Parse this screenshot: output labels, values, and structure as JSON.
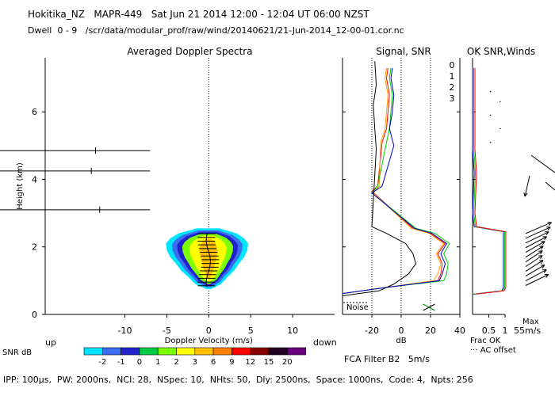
{
  "header": {
    "line1": "Hokitika_NZ   MAPR-449   Sat Jun 21 2014 12:00 - 12:04 UT 06:00 NZST",
    "line2": "Dwell  0 - 9   /scr/data/modular_prof/raw/wind/20140621/21-Jun-2014_12-00-01.cor.nc"
  },
  "footer": {
    "params": "IPP: 100μs,  PW: 2000ns,  NCI: 28,  NSpec: 10,  NHts: 50,  Dly: 2500ns,  Space: 1000ns,  Code: 4,  Npts: 256",
    "fca": "FCA Filter B2   5m/s"
  },
  "colors": {
    "snr_scale": [
      "#00e5ff",
      "#3a6df0",
      "#2222cc",
      "#00cc44",
      "#7cff00",
      "#ffff00",
      "#ffc000",
      "#ff8000",
      "#ff0000",
      "#880000",
      "#220022",
      "#6a0080"
    ],
    "channel0": "#ff0000",
    "channel1": "#ffa000",
    "channel2": "#00cc00",
    "channel3": "#0000cc"
  },
  "chart_data": [
    {
      "type": "heatmap",
      "title": "Averaged Doppler Spectra",
      "xlabel": "Doppler Velocity (m/s)",
      "ylabel": "Height (km)",
      "x_ticks": [
        "-10",
        "-5",
        "0",
        "5",
        "10"
      ],
      "y_ticks": [
        "0",
        "2",
        "4",
        "6"
      ],
      "xlim": [
        -19.5,
        15
      ],
      "ylim": [
        0,
        7.6
      ],
      "left_note": "up",
      "right_note": "down",
      "colorbar": {
        "label": "SNR dB",
        "ticks": [
          "-2",
          "-1",
          "0",
          "1",
          "2",
          "3",
          "6",
          "9",
          "12",
          "15",
          "20"
        ]
      },
      "echo_region": {
        "height_range": [
          0.75,
          2.55
        ],
        "half_width_mps": [
          [
            0.75,
            0.3
          ],
          [
            0.9,
            1.6
          ],
          [
            1.1,
            2.4
          ],
          [
            1.3,
            3.3
          ],
          [
            1.5,
            3.9
          ],
          [
            1.7,
            4.6
          ],
          [
            1.9,
            5.0
          ],
          [
            2.1,
            5.1
          ],
          [
            2.25,
            4.6
          ],
          [
            2.4,
            3.6
          ],
          [
            2.55,
            1.4
          ]
        ]
      },
      "noise_heights": [
        {
          "height": 4.85,
          "mark": -13.5
        },
        {
          "height": 4.25,
          "mark": -14.0
        },
        {
          "height": 3.1,
          "mark": -13.0
        }
      ]
    },
    {
      "type": "line",
      "title": "Signal, SNR",
      "xlabel": "dB",
      "x_ticks": [
        "-20",
        "0",
        "20",
        "40"
      ],
      "xlim": [
        -40,
        40
      ],
      "ylim": [
        0,
        7.6
      ],
      "legend": [
        "0",
        "1",
        "2",
        "3"
      ],
      "annotation": "Noise",
      "series": [
        {
          "name": "0",
          "profile": [
            [
              0.62,
              -40
            ],
            [
              0.8,
              -10
            ],
            [
              1.0,
              25
            ],
            [
              1.2,
              27
            ],
            [
              1.5,
              28
            ],
            [
              1.8,
              25
            ],
            [
              2.1,
              30
            ],
            [
              2.4,
              20
            ],
            [
              2.55,
              8
            ],
            [
              3.65,
              -20
            ],
            [
              3.8,
              -16
            ],
            [
              5.1,
              -13
            ],
            [
              5.5,
              -10
            ],
            [
              6.0,
              -9
            ],
            [
              6.5,
              -8
            ],
            [
              7.0,
              -10
            ],
            [
              7.3,
              -9
            ]
          ]
        },
        {
          "name": "1",
          "profile": [
            [
              0.62,
              -40
            ],
            [
              0.8,
              -10
            ],
            [
              1.0,
              22
            ],
            [
              1.2,
              25
            ],
            [
              1.5,
              27
            ],
            [
              1.8,
              24
            ],
            [
              2.1,
              29
            ],
            [
              2.4,
              19
            ],
            [
              2.55,
              7
            ],
            [
              3.6,
              -19
            ],
            [
              3.8,
              -15
            ],
            [
              5.1,
              -14
            ],
            [
              5.5,
              -11
            ],
            [
              6.0,
              -10
            ],
            [
              6.5,
              -9
            ],
            [
              7.0,
              -11
            ],
            [
              7.3,
              -10
            ]
          ]
        },
        {
          "name": "2",
          "profile": [
            [
              0.62,
              -40
            ],
            [
              0.8,
              -10
            ],
            [
              1.0,
              29
            ],
            [
              1.2,
              31
            ],
            [
              1.5,
              32
            ],
            [
              1.8,
              29
            ],
            [
              2.1,
              33
            ],
            [
              2.4,
              23
            ],
            [
              2.55,
              10
            ],
            [
              3.6,
              -20
            ],
            [
              3.8,
              -16
            ],
            [
              5.1,
              -10
            ],
            [
              5.5,
              -8
            ],
            [
              6.0,
              -7
            ],
            [
              6.5,
              -6
            ],
            [
              7.0,
              -8
            ],
            [
              7.3,
              -7
            ]
          ]
        },
        {
          "name": "3",
          "profile": [
            [
              0.62,
              -40
            ],
            [
              0.8,
              -10
            ],
            [
              1.0,
              26
            ],
            [
              1.2,
              28
            ],
            [
              1.5,
              30
            ],
            [
              1.8,
              27
            ],
            [
              2.1,
              31
            ],
            [
              2.4,
              21
            ],
            [
              2.55,
              9
            ],
            [
              3.6,
              -20
            ],
            [
              3.8,
              -13
            ],
            [
              5.0,
              -5
            ],
            [
              5.5,
              -8
            ],
            [
              6.0,
              -6
            ],
            [
              6.5,
              -5
            ],
            [
              7.0,
              -7
            ],
            [
              7.3,
              -6
            ]
          ]
        },
        {
          "name": "signal",
          "profile": [
            [
              0.55,
              -40
            ],
            [
              0.7,
              -15
            ],
            [
              0.9,
              -5
            ],
            [
              1.2,
              5
            ],
            [
              1.5,
              10
            ],
            [
              1.8,
              8
            ],
            [
              2.1,
              3
            ],
            [
              2.4,
              -10
            ],
            [
              2.6,
              -20
            ],
            [
              4.9,
              -17
            ],
            [
              5.5,
              -18
            ],
            [
              6.2,
              -19
            ],
            [
              6.8,
              -17
            ],
            [
              7.5,
              -18
            ]
          ]
        }
      ]
    },
    {
      "type": "line",
      "title": "OK SNR,Winds",
      "x_ticks": [
        "0.5",
        "1"
      ],
      "xlim": [
        0,
        1
      ],
      "ylim": [
        0,
        7.6
      ],
      "bottom_labels": [
        "Frac OK",
        "··· AC offset"
      ],
      "max_label": "Max",
      "max_value": "55m/s",
      "series": [
        {
          "name": "frac_ok",
          "profile": [
            [
              0.6,
              0.02
            ],
            [
              0.7,
              0.9
            ],
            [
              0.8,
              0.95
            ],
            [
              2.45,
              0.95
            ],
            [
              2.6,
              0.05
            ],
            [
              3.0,
              0.0
            ],
            [
              4.2,
              0.05
            ],
            [
              4.9,
              0.0
            ],
            [
              6.0,
              0.0
            ],
            [
              7.3,
              0.0
            ]
          ]
        }
      ]
    }
  ]
}
